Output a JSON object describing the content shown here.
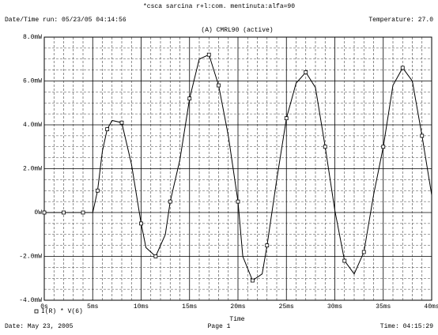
{
  "chart_data": {
    "type": "line",
    "title": "*csca sarcina r+l:com. mentinuta:alfa=90",
    "run_info": "Date/Time run: 05/23/05 04:14:56",
    "temperature": "Temperature: 27.0",
    "subtitle": "(A) CMRL90 (active)",
    "x_label": "Time",
    "footer_date": "Date: May 23, 2005",
    "footer_page": "Page 1",
    "footer_time": "Time: 04:15:29",
    "x": [
      0,
      1,
      2,
      3,
      4,
      5,
      5.5,
      6,
      6.5,
      7,
      8,
      9,
      10,
      10.5,
      11.5,
      12.5,
      13,
      14,
      15,
      16,
      17,
      17.5,
      18,
      19,
      20,
      20.5,
      21.5,
      22.5,
      23,
      24,
      25,
      26,
      27,
      28,
      29,
      30,
      31,
      32,
      33,
      34,
      35,
      36,
      37,
      38,
      39,
      40
    ],
    "series": [
      {
        "name": "I(R) * V(6)",
        "color": "#000000",
        "values": [
          0,
          0,
          0,
          0,
          0,
          0,
          1.0,
          2.8,
          3.8,
          4.2,
          4.1,
          2.2,
          -0.5,
          -1.6,
          -2.0,
          -1.0,
          0.5,
          2.4,
          5.2,
          7.0,
          7.2,
          6.5,
          5.8,
          3.5,
          0.5,
          -2.0,
          -3.1,
          -2.8,
          -1.5,
          1.5,
          4.3,
          5.9,
          6.4,
          5.7,
          3.0,
          0.1,
          -2.2,
          -2.8,
          -1.8,
          0.8,
          3.0,
          5.8,
          6.6,
          6.0,
          3.5,
          0.8
        ]
      }
    ],
    "xlim": [
      0,
      40
    ],
    "xticks": [
      {
        "value": 0,
        "label": "0s"
      },
      {
        "value": 5,
        "label": "5ms"
      },
      {
        "value": 10,
        "label": "10ms"
      },
      {
        "value": 15,
        "label": "15ms"
      },
      {
        "value": 20,
        "label": "20ms"
      },
      {
        "value": 25,
        "label": "25ms"
      },
      {
        "value": 30,
        "label": "30ms"
      },
      {
        "value": 35,
        "label": "35ms"
      },
      {
        "value": 40,
        "label": "40ms"
      }
    ],
    "ylim": [
      -4,
      8
    ],
    "yticks": [
      {
        "value": -4,
        "label": "-4.0mW"
      },
      {
        "value": -2,
        "label": "-2.0mW"
      },
      {
        "value": 0,
        "label": "0W"
      },
      {
        "value": 2,
        "label": "2.0mW"
      },
      {
        "value": 4,
        "label": "4.0mW"
      },
      {
        "value": 6,
        "label": "6.0mW"
      },
      {
        "value": 8,
        "label": "8.0mW"
      }
    ],
    "grid": true,
    "minor_grid": {
      "x": 5,
      "y": 4
    }
  }
}
